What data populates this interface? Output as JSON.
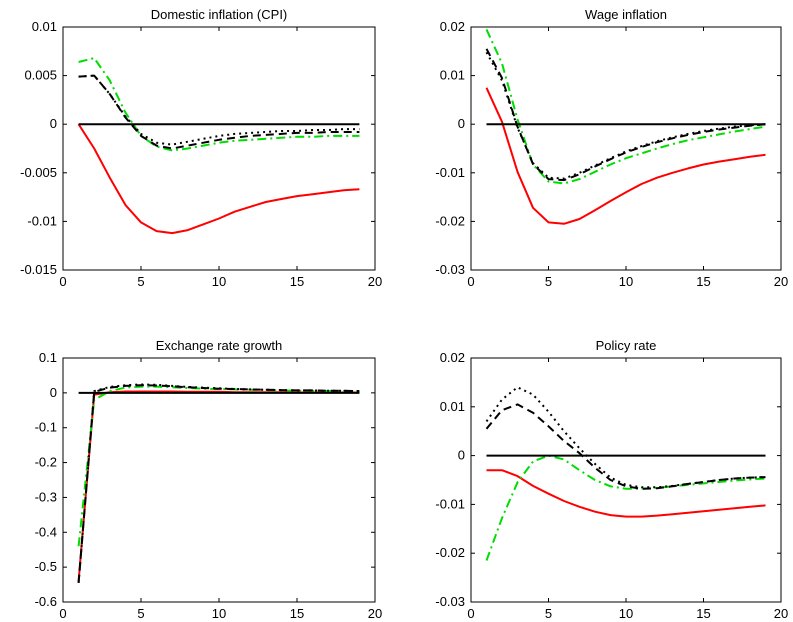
{
  "chart_data": [
    {
      "type": "line",
      "title": "Domestic inflation (CPI)",
      "xlabel": "",
      "ylabel": "",
      "xlim": [
        0,
        20
      ],
      "ylim": [
        -0.015,
        0.01
      ],
      "x_ticks": [
        0,
        5,
        10,
        15,
        20
      ],
      "y_ticks": [
        -0.015,
        -0.01,
        -0.005,
        0,
        0.005,
        0.01
      ],
      "x_tick_labels": [
        "0",
        "5",
        "10",
        "15",
        "20"
      ],
      "y_tick_labels": [
        "-0.015",
        "-0.01",
        "-0.005",
        "0",
        "0.005",
        "0.01"
      ],
      "grid": false,
      "x": [
        1,
        2,
        3,
        4,
        5,
        6,
        7,
        8,
        9,
        10,
        11,
        12,
        13,
        14,
        15,
        16,
        17,
        18,
        19
      ],
      "series": [
        {
          "color": "#ff0000",
          "dash": "solid",
          "values": [
            0,
            -0.0025,
            -0.0055,
            -0.0083,
            -0.0101,
            -0.011,
            -0.0112,
            -0.0109,
            -0.0103,
            -0.0097,
            -0.009,
            -0.0085,
            -0.008,
            -0.0077,
            -0.0074,
            -0.0072,
            -0.007,
            -0.0068,
            -0.0067
          ]
        },
        {
          "color": "#00dd00",
          "dash": "dashdot",
          "values": [
            0.0064,
            0.0068,
            0.0045,
            0.0012,
            -0.0012,
            -0.0023,
            -0.0027,
            -0.0025,
            -0.0022,
            -0.0019,
            -0.0017,
            -0.0016,
            -0.0015,
            -0.0014,
            -0.0013,
            -0.0013,
            -0.0012,
            -0.0012,
            -0.0012
          ]
        },
        {
          "color": "#000000",
          "dash": "dashed",
          "values": [
            0.0049,
            0.005,
            0.0031,
            0.0007,
            -0.0012,
            -0.0022,
            -0.0025,
            -0.0022,
            -0.0019,
            -0.0016,
            -0.0014,
            -0.0012,
            -0.0011,
            -0.001,
            -0.0009,
            -0.0009,
            -0.0008,
            -0.0008,
            -0.0008
          ]
        },
        {
          "color": "#000000",
          "dash": "dotted",
          "values": [
            0.0049,
            0.005,
            0.0031,
            0.0008,
            -0.001,
            -0.0019,
            -0.0021,
            -0.0018,
            -0.0015,
            -0.0012,
            -0.001,
            -0.0009,
            -0.0008,
            -0.0007,
            -0.0007,
            -0.0006,
            -0.0006,
            -0.0005,
            -0.0005
          ]
        },
        {
          "color": "#000000",
          "dash": "solid",
          "values": [
            0,
            0,
            0,
            0,
            0,
            0,
            0,
            0,
            0,
            0,
            0,
            0,
            0,
            0,
            0,
            0,
            0,
            0,
            0
          ]
        }
      ]
    },
    {
      "type": "line",
      "title": "Wage inflation",
      "xlabel": "",
      "ylabel": "",
      "xlim": [
        0,
        20
      ],
      "ylim": [
        -0.03,
        0.02
      ],
      "x_ticks": [
        0,
        5,
        10,
        15,
        20
      ],
      "y_ticks": [
        -0.03,
        -0.02,
        -0.01,
        0,
        0.01,
        0.02
      ],
      "x_tick_labels": [
        "0",
        "5",
        "10",
        "15",
        "20"
      ],
      "y_tick_labels": [
        "-0.03",
        "-0.02",
        "-0.01",
        "0",
        "0.01",
        "0.02"
      ],
      "grid": false,
      "x": [
        1,
        2,
        3,
        4,
        5,
        6,
        7,
        8,
        9,
        10,
        11,
        12,
        13,
        14,
        15,
        16,
        17,
        18,
        19
      ],
      "series": [
        {
          "color": "#ff0000",
          "dash": "solid",
          "values": [
            0.0075,
            0.0005,
            -0.0098,
            -0.0172,
            -0.0202,
            -0.0205,
            -0.0195,
            -0.0177,
            -0.0158,
            -0.014,
            -0.0123,
            -0.011,
            -0.01,
            -0.0091,
            -0.0083,
            -0.0077,
            -0.0072,
            -0.0067,
            -0.0063
          ]
        },
        {
          "color": "#00dd00",
          "dash": "dashdot",
          "values": [
            0.0195,
            0.0125,
            0.001,
            -0.0083,
            -0.0118,
            -0.0122,
            -0.0113,
            -0.0098,
            -0.0083,
            -0.007,
            -0.006,
            -0.005,
            -0.0041,
            -0.0033,
            -0.0027,
            -0.0021,
            -0.0015,
            -0.001,
            -0.0005
          ]
        },
        {
          "color": "#000000",
          "dash": "dashed",
          "values": [
            0.0155,
            0.0095,
            -0.0005,
            -0.0082,
            -0.0113,
            -0.0115,
            -0.0103,
            -0.0087,
            -0.0072,
            -0.0058,
            -0.0047,
            -0.0037,
            -0.0029,
            -0.0022,
            -0.0016,
            -0.0011,
            -0.0007,
            -0.0003,
            0
          ]
        },
        {
          "color": "#000000",
          "dash": "dotted",
          "values": [
            0.0148,
            0.009,
            -0.0007,
            -0.008,
            -0.011,
            -0.0112,
            -0.01,
            -0.0085,
            -0.007,
            -0.0056,
            -0.0045,
            -0.0035,
            -0.0027,
            -0.002,
            -0.0014,
            -0.0009,
            -0.0005,
            -0.0002,
            0
          ]
        },
        {
          "color": "#000000",
          "dash": "solid",
          "values": [
            0,
            0,
            0,
            0,
            0,
            0,
            0,
            0,
            0,
            0,
            0,
            0,
            0,
            0,
            0,
            0,
            0,
            0,
            0
          ]
        }
      ]
    },
    {
      "type": "line",
      "title": "Exchange rate growth",
      "xlabel": "",
      "ylabel": "",
      "xlim": [
        0,
        20
      ],
      "ylim": [
        -0.6,
        0.1
      ],
      "x_ticks": [
        0,
        5,
        10,
        15,
        20
      ],
      "y_ticks": [
        -0.6,
        -0.5,
        -0.4,
        -0.3,
        -0.2,
        -0.1,
        0,
        0.1
      ],
      "x_tick_labels": [
        "0",
        "5",
        "10",
        "15",
        "20"
      ],
      "y_tick_labels": [
        "-0.6",
        "-0.5",
        "-0.4",
        "-0.3",
        "-0.2",
        "-0.1",
        "0",
        "0.1"
      ],
      "grid": false,
      "x": [
        1,
        2,
        3,
        4,
        5,
        6,
        7,
        8,
        9,
        10,
        11,
        12,
        13,
        14,
        15,
        16,
        17,
        18,
        19
      ],
      "series": [
        {
          "color": "#ff0000",
          "dash": "solid",
          "values": [
            -0.54,
            -0.005,
            0.002,
            0.004,
            0.004,
            0.004,
            0.004,
            0.003,
            0.003,
            0.003,
            0.002,
            0.002,
            0.002,
            0.002,
            0.001,
            0.001,
            0.001,
            0.001,
            0.001
          ]
        },
        {
          "color": "#00dd00",
          "dash": "dashdot",
          "values": [
            -0.44,
            -0.02,
            0.005,
            0.015,
            0.018,
            0.018,
            0.016,
            0.014,
            0.012,
            0.011,
            0.01,
            0.009,
            0.008,
            0.007,
            0.006,
            0.006,
            0.005,
            0.005,
            0.005
          ]
        },
        {
          "color": "#000000",
          "dash": "dashed",
          "values": [
            -0.545,
            0.003,
            0.015,
            0.02,
            0.022,
            0.021,
            0.019,
            0.016,
            0.014,
            0.012,
            0.011,
            0.01,
            0.009,
            0.008,
            0.007,
            0.007,
            0.006,
            0.006,
            0.005
          ]
        },
        {
          "color": "#000000",
          "dash": "dotted",
          "values": [
            -0.545,
            0.005,
            0.017,
            0.022,
            0.024,
            0.023,
            0.02,
            0.017,
            0.015,
            0.013,
            0.011,
            0.01,
            0.009,
            0.008,
            0.007,
            0.007,
            0.006,
            0.006,
            0.005
          ]
        },
        {
          "color": "#000000",
          "dash": "solid",
          "values": [
            0,
            0,
            0,
            0,
            0,
            0,
            0,
            0,
            0,
            0,
            0,
            0,
            0,
            0,
            0,
            0,
            0,
            0,
            0
          ]
        }
      ]
    },
    {
      "type": "line",
      "title": "Policy rate",
      "xlabel": "",
      "ylabel": "",
      "xlim": [
        0,
        20
      ],
      "ylim": [
        -0.03,
        0.02
      ],
      "x_ticks": [
        0,
        5,
        10,
        15,
        20
      ],
      "y_ticks": [
        -0.03,
        -0.02,
        -0.01,
        0,
        0.01,
        0.02
      ],
      "x_tick_labels": [
        "0",
        "5",
        "10",
        "15",
        "20"
      ],
      "y_tick_labels": [
        "-0.03",
        "-0.02",
        "-0.01",
        "0",
        "0.01",
        "0.02"
      ],
      "grid": false,
      "x": [
        1,
        2,
        3,
        4,
        5,
        6,
        7,
        8,
        9,
        10,
        11,
        12,
        13,
        14,
        15,
        16,
        17,
        18,
        19
      ],
      "series": [
        {
          "color": "#ff0000",
          "dash": "solid",
          "values": [
            -0.003,
            -0.003,
            -0.0042,
            -0.0062,
            -0.0078,
            -0.0093,
            -0.0105,
            -0.0115,
            -0.0122,
            -0.0125,
            -0.0125,
            -0.0123,
            -0.012,
            -0.0117,
            -0.0114,
            -0.0111,
            -0.0108,
            -0.0105,
            -0.0102
          ]
        },
        {
          "color": "#00dd00",
          "dash": "dashdot",
          "values": [
            -0.0215,
            -0.0128,
            -0.0055,
            -0.0012,
            0,
            -0.0008,
            -0.003,
            -0.005,
            -0.0063,
            -0.0068,
            -0.0068,
            -0.0066,
            -0.0063,
            -0.006,
            -0.0057,
            -0.0054,
            -0.0051,
            -0.0049,
            -0.0047
          ]
        },
        {
          "color": "#000000",
          "dash": "dashed",
          "values": [
            0.0055,
            0.0093,
            0.0105,
            0.0088,
            0.006,
            0.003,
            0.0005,
            -0.0025,
            -0.005,
            -0.0063,
            -0.0068,
            -0.0067,
            -0.0063,
            -0.0058,
            -0.0054,
            -0.005,
            -0.0047,
            -0.0045,
            -0.0044
          ]
        },
        {
          "color": "#000000",
          "dash": "dotted",
          "values": [
            0.007,
            0.0115,
            0.014,
            0.0125,
            0.009,
            0.005,
            0.0015,
            -0.0017,
            -0.0045,
            -0.006,
            -0.0065,
            -0.0065,
            -0.0062,
            -0.0058,
            -0.0054,
            -0.005,
            -0.0047,
            -0.0045,
            -0.0044
          ]
        },
        {
          "color": "#000000",
          "dash": "solid",
          "values": [
            0,
            0,
            0,
            0,
            0,
            0,
            0,
            0,
            0,
            0,
            0,
            0,
            0,
            0,
            0,
            0,
            0,
            0,
            0
          ]
        }
      ]
    }
  ]
}
